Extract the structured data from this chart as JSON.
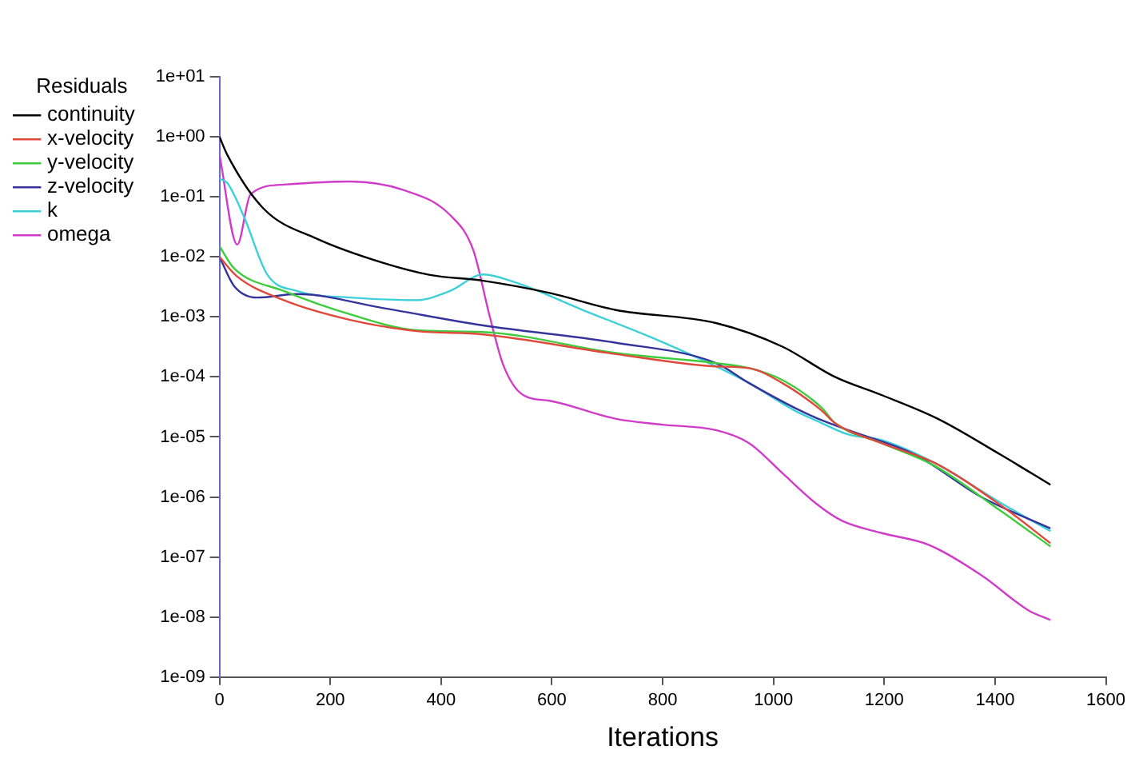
{
  "chart_data": {
    "type": "line",
    "xlabel": "Iterations",
    "legend_title": "Residuals",
    "legend": "top left",
    "grid": false,
    "marker": "none",
    "line_style": "solid",
    "log": "y",
    "xlim": [
      0,
      1600
    ],
    "xticks": [
      0,
      200,
      400,
      600,
      800,
      1000,
      1200,
      1400,
      1600
    ],
    "ylim": [
      1e-09,
      10
    ],
    "yticks": [
      {
        "value": 10,
        "label": "1e+01"
      },
      {
        "value": 1,
        "label": "1e+00"
      },
      {
        "value": 0.1,
        "label": "1e-01"
      },
      {
        "value": 0.01,
        "label": "1e-02"
      },
      {
        "value": 0.001,
        "label": "1e-03"
      },
      {
        "value": 0.0001,
        "label": "1e-04"
      },
      {
        "value": 1e-05,
        "label": "1e-05"
      },
      {
        "value": 1e-06,
        "label": "1e-06"
      },
      {
        "value": 1e-07,
        "label": "1e-07"
      },
      {
        "value": 1e-08,
        "label": "1e-08"
      },
      {
        "value": 1e-09,
        "label": "1e-09"
      }
    ],
    "series": [
      {
        "name": "continuity",
        "color": "#000000",
        "x": [
          0,
          14,
          80,
          176,
          296,
          380,
          476,
          596,
          716,
          896,
          1016,
          1111,
          1195,
          1297,
          1411,
          1500
        ],
        "values": [
          1,
          0.5,
          0.063,
          0.02,
          0.0079,
          0.005,
          0.004,
          0.0025,
          0.0013,
          0.00079,
          0.00032,
          0.0001,
          5e-05,
          2e-05,
          5e-06,
          1.6e-06
        ]
      },
      {
        "name": "x-velocity",
        "color": "#e0483c",
        "x": [
          0,
          32,
          116,
          236,
          356,
          476,
          716,
          896,
          956,
          1016,
          1088,
          1111,
          1195,
          1291,
          1411,
          1500
        ],
        "values": [
          0.01,
          0.0047,
          0.0019,
          0.00089,
          0.00058,
          0.00051,
          0.00024,
          0.00015,
          0.00014,
          7.9e-05,
          2.7e-05,
          1.7e-05,
          7.9e-06,
          3.7e-06,
          7.2e-07,
          1.7e-07
        ]
      },
      {
        "name": "y-velocity",
        "color": "#3ccc3c",
        "x": [
          0,
          26,
          116,
          236,
          356,
          476,
          716,
          896,
          956,
          1016,
          1088,
          1111,
          1195,
          1291,
          1411,
          1500
        ],
        "values": [
          0.015,
          0.0065,
          0.0027,
          0.0011,
          0.0006,
          0.00056,
          0.00025,
          0.00017,
          0.00014,
          8.9e-05,
          3e-05,
          1.7e-05,
          7.9e-06,
          3.3e-06,
          5.8e-07,
          1.5e-07
        ]
      },
      {
        "name": "z-velocity",
        "color": "#34349c",
        "x": [
          0,
          26,
          68,
          140,
          296,
          476,
          716,
          896,
          956,
          1040,
          1076,
          1135,
          1255,
          1375,
          1500
        ],
        "values": [
          0.01,
          0.0033,
          0.0021,
          0.0024,
          0.0014,
          0.00072,
          0.00037,
          0.00017,
          7.9e-05,
          3e-05,
          2.1e-05,
          1.3e-05,
          5.1e-06,
          1e-06,
          3e-07
        ]
      },
      {
        "name": "k",
        "color": "#3cd0d8",
        "x": [
          0,
          14,
          44,
          86,
          140,
          236,
          356,
          416,
          476,
          536,
          656,
          776,
          896,
          956,
          1040,
          1076,
          1135,
          1195,
          1291,
          1411,
          1500
        ],
        "values": [
          0.2,
          0.17,
          0.047,
          0.0051,
          0.0027,
          0.0021,
          0.0019,
          0.0027,
          0.0051,
          0.0037,
          0.0013,
          0.00047,
          0.00015,
          7.9e-05,
          2.7e-05,
          1.9e-05,
          1.1e-05,
          8.9e-06,
          3.7e-06,
          7.9e-07,
          2.7e-07
        ]
      },
      {
        "name": "omega",
        "color": "#d03cc8",
        "x": [
          0,
          32,
          56,
          116,
          236,
          332,
          416,
          458,
          488,
          512,
          548,
          596,
          716,
          800,
          896,
          956,
          1016,
          1076,
          1124,
          1196,
          1280,
          1375,
          1460,
          1500
        ],
        "values": [
          0.5,
          0.016,
          0.11,
          0.16,
          0.18,
          0.13,
          0.05,
          0.013,
          0.001,
          0.00016,
          5e-05,
          4e-05,
          2e-05,
          1.6e-05,
          1.3e-05,
          7.9e-06,
          2.5e-06,
          7.9e-07,
          4e-07,
          2.5e-07,
          1.6e-07,
          5e-08,
          1.3e-08,
          8.9e-09
        ]
      }
    ]
  }
}
